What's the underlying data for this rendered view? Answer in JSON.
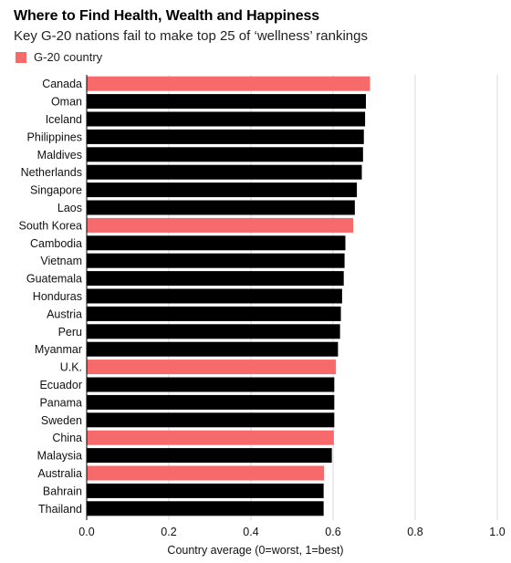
{
  "header": {
    "title": "Where to Find Health, Wealth and Happiness",
    "subtitle": "Key G-20 nations fail to make top 25 of ‘wellness’ rankings"
  },
  "legend": {
    "label": "G-20 country",
    "color": "#f76a6b"
  },
  "colors": {
    "g20": "#f76a6b",
    "other": "#000000",
    "grid": "#d9d9d9"
  },
  "chart_data": {
    "type": "bar",
    "orientation": "horizontal",
    "title": "Where to Find Health, Wealth and Happiness",
    "subtitle": "Key G-20 nations fail to make top 25 of ‘wellness’ rankings",
    "xlabel": "Country average (0=worst, 1=best)",
    "xlim": [
      0,
      1.0
    ],
    "xticks": [
      "0.0",
      "0.2",
      "0.4",
      "0.6",
      "0.8",
      "1.0"
    ],
    "xtick_values": [
      0,
      0.2,
      0.4,
      0.6,
      0.8,
      1.0
    ],
    "grid": true,
    "legend_position": "top-left",
    "categories": [
      "Canada",
      "Oman",
      "Iceland",
      "Philippines",
      "Maldives",
      "Netherlands",
      "Singapore",
      "Laos",
      "South Korea",
      "Cambodia",
      "Vietnam",
      "Guatemala",
      "Honduras",
      "Austria",
      "Peru",
      "Myanmar",
      "U.K.",
      "Ecuador",
      "Panama",
      "Sweden",
      "China",
      "Malaysia",
      "Australia",
      "Bahrain",
      "Thailand"
    ],
    "values": [
      0.69,
      0.68,
      0.678,
      0.675,
      0.673,
      0.67,
      0.658,
      0.653,
      0.649,
      0.63,
      0.628,
      0.626,
      0.622,
      0.619,
      0.617,
      0.612,
      0.607,
      0.603,
      0.603,
      0.603,
      0.602,
      0.597,
      0.578,
      0.577,
      0.577
    ],
    "g20": [
      true,
      false,
      false,
      false,
      false,
      false,
      false,
      false,
      true,
      false,
      false,
      false,
      false,
      false,
      false,
      false,
      true,
      false,
      false,
      false,
      true,
      false,
      true,
      false,
      false
    ]
  }
}
